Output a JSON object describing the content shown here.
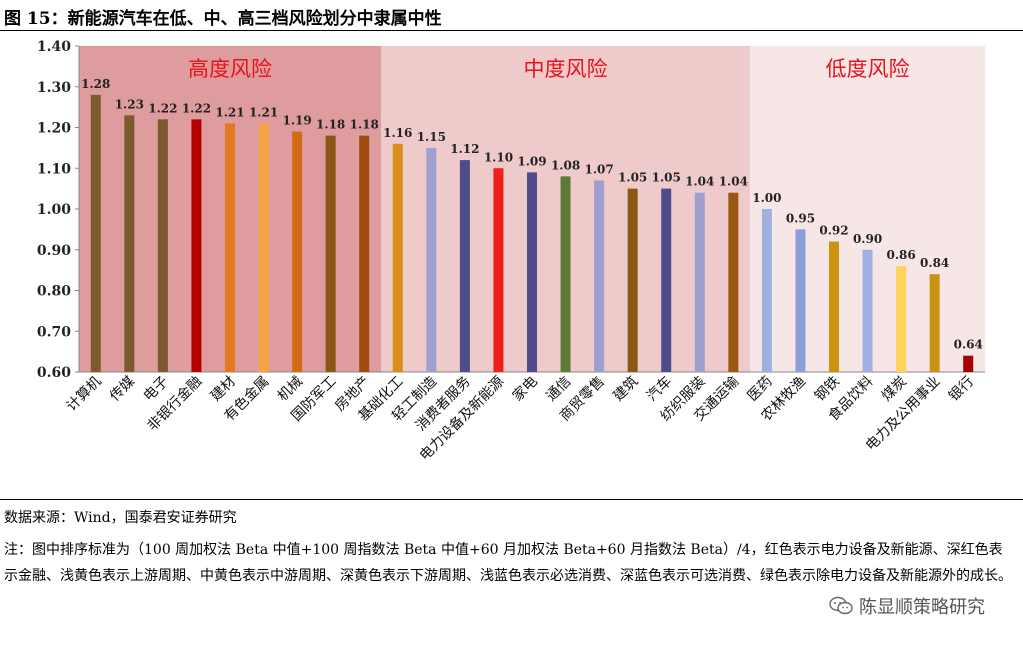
{
  "figure": {
    "title": "图 15：新能源汽车在低、中、高三档风险划分中隶属中性",
    "source": "数据来源：Wind，国泰君安证券研究",
    "note": "注：图中排序标准为（100 周加权法 Beta 中值+100 周指数法 Beta 中值+60 月加权法 Beta+60 月指数法 Beta）/4，红色表示电力设备及新能源、深红色表示金融、浅黄色表示上游周期、中黄色表示中游周期、深黄色表示下游周期、浅蓝色表示必选消费、深蓝色表示可选消费、绿色表示除电力设备及新能源外的成长。",
    "watermark": "陈显顺策略研究",
    "watermark_icon": "wechat-icon"
  },
  "chart_data": {
    "type": "bar",
    "ylim": [
      0.6,
      1.4
    ],
    "yticks": [
      0.6,
      0.7,
      0.8,
      0.9,
      1.0,
      1.1,
      1.2,
      1.3,
      1.4
    ],
    "grid": false,
    "categories": [
      "计算机",
      "传媒",
      "电子",
      "非银行金融",
      "建材",
      "有色金属",
      "机械",
      "国防军工",
      "房地产",
      "基础化工",
      "轻工制造",
      "消费者服务",
      "电力设备及新能源",
      "家电",
      "通信",
      "商贸零售",
      "建筑",
      "汽车",
      "纺织服装",
      "交通运输",
      "医药",
      "农林牧渔",
      "钢铁",
      "食品饮料",
      "煤炭",
      "电力及公用事业",
      "银行"
    ],
    "values": [
      1.28,
      1.23,
      1.22,
      1.22,
      1.21,
      1.21,
      1.19,
      1.18,
      1.18,
      1.16,
      1.15,
      1.12,
      1.1,
      1.09,
      1.08,
      1.07,
      1.05,
      1.05,
      1.04,
      1.04,
      1.0,
      0.95,
      0.92,
      0.9,
      0.86,
      0.84,
      0.64
    ],
    "value_labels": [
      "1.28",
      "1.23",
      "1.22",
      "1.22",
      "1.21",
      "1.21",
      "1.19",
      "1.18",
      "1.18",
      "1.16",
      "1.15",
      "1.12",
      "1.10",
      "1.09",
      "1.08",
      "1.07",
      "1.05",
      "1.05",
      "1.04",
      "1.04",
      "1.00",
      "0.95",
      "0.92",
      "0.90",
      "0.86",
      "0.84",
      "0.64"
    ],
    "colors": [
      "#7B5A2E",
      "#7B5A2E",
      "#7B5A2E",
      "#B40000",
      "#E3781D",
      "#F4A443",
      "#D36A15",
      "#8C5618",
      "#A04B10",
      "#D98E19",
      "#9E9ECF",
      "#4E4C8A",
      "#F01D1D",
      "#4E4C8A",
      "#5E7A36",
      "#9E9ECF",
      "#8A5A14",
      "#4E4C8A",
      "#9E9ECF",
      "#9A5710",
      "#9FB0E0",
      "#8CA0D8",
      "#C9920F",
      "#9FB0E0",
      "#FFD25E",
      "#C9920F",
      "#A80000"
    ],
    "regions": [
      {
        "label": "高度风险",
        "from": 0,
        "to": 8,
        "color": "#DE9C9E"
      },
      {
        "label": "中度风险",
        "from": 9,
        "to": 19,
        "color": "#EECACB"
      },
      {
        "label": "低度风险",
        "from": 20,
        "to": 26,
        "color": "#F6E6E6"
      }
    ],
    "region_label_color": "#E8121C"
  }
}
